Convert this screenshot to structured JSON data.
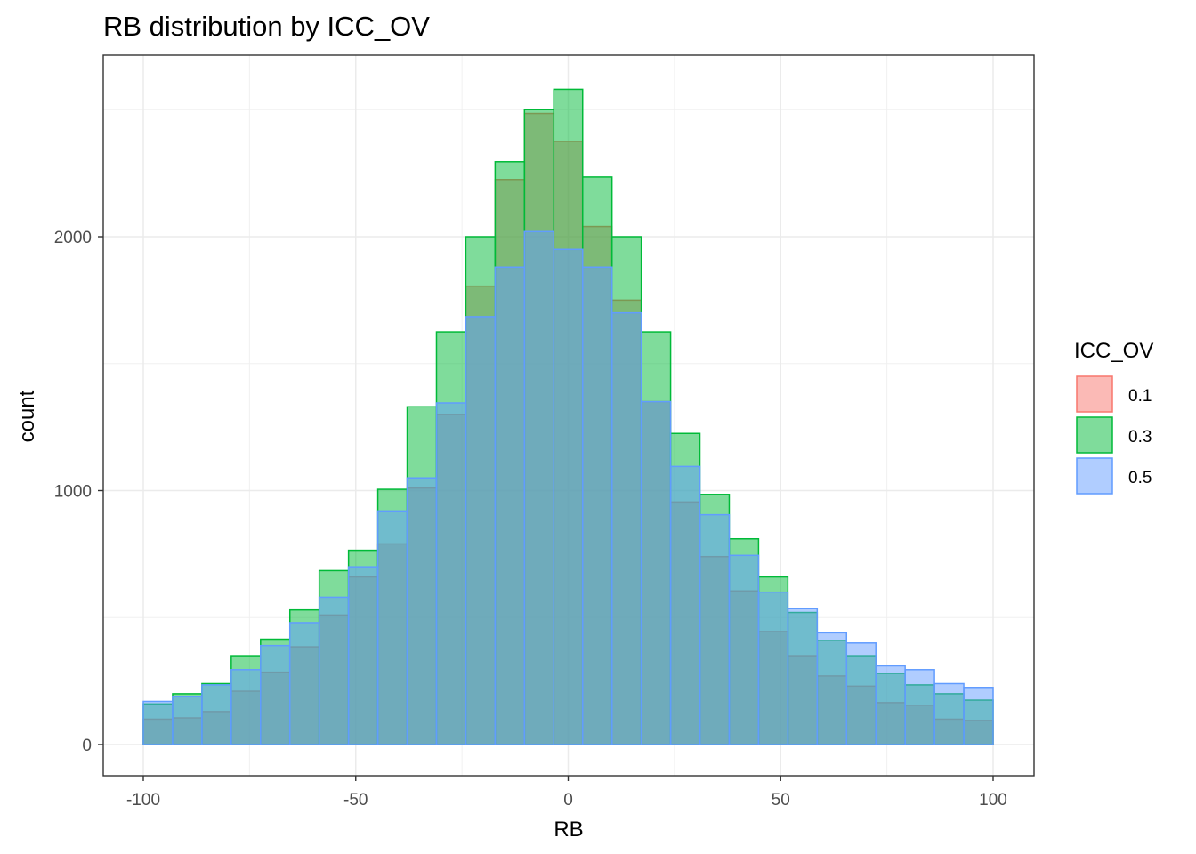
{
  "chart_data": {
    "type": "bar",
    "title": "RB distribution by ICC_OV",
    "xlabel": "RB",
    "ylabel": "count",
    "xlim": [
      -100,
      100
    ],
    "ylim": [
      0,
      2600
    ],
    "x_ticks": [
      -100,
      -50,
      0,
      50,
      100
    ],
    "x_tick_labels": [
      "-100",
      "-50",
      "0",
      "50",
      "100"
    ],
    "y_ticks": [
      0,
      1000,
      2000
    ],
    "y_tick_labels": [
      "0",
      "1000",
      "2000"
    ],
    "grid": true,
    "legend": {
      "title": "ICC_OV",
      "placement": "right"
    },
    "bin_edges": [
      -100,
      -93.1,
      -86.2,
      -79.3,
      -72.4,
      -65.5,
      -58.6,
      -51.7,
      -44.8,
      -37.9,
      -31.0,
      -24.1,
      -17.2,
      -10.3,
      -3.4,
      3.4,
      10.3,
      17.2,
      24.1,
      31.0,
      37.9,
      44.8,
      51.7,
      58.6,
      65.5,
      72.4,
      79.3,
      86.2,
      93.1,
      100
    ],
    "series": [
      {
        "name": "0.1",
        "color": "#F8766D",
        "values": [
          100,
          105,
          130,
          210,
          285,
          385,
          510,
          660,
          790,
          1010,
          1300,
          1805,
          2225,
          2485,
          2375,
          2040,
          1750,
          1350,
          955,
          740,
          605,
          445,
          350,
          270,
          230,
          165,
          155,
          100,
          95
        ]
      },
      {
        "name": "0.3",
        "color": "#00BA38",
        "values": [
          160,
          200,
          240,
          350,
          415,
          530,
          685,
          765,
          1005,
          1330,
          1625,
          2000,
          2295,
          2500,
          2580,
          2235,
          2000,
          1625,
          1225,
          985,
          810,
          660,
          520,
          410,
          350,
          280,
          235,
          200,
          175
        ]
      },
      {
        "name": "0.5",
        "color": "#619CFF",
        "values": [
          170,
          190,
          235,
          295,
          390,
          480,
          580,
          700,
          920,
          1050,
          1345,
          1685,
          1880,
          2020,
          1950,
          1880,
          1700,
          1350,
          1095,
          905,
          745,
          600,
          535,
          440,
          400,
          310,
          295,
          240,
          225
        ]
      }
    ]
  }
}
